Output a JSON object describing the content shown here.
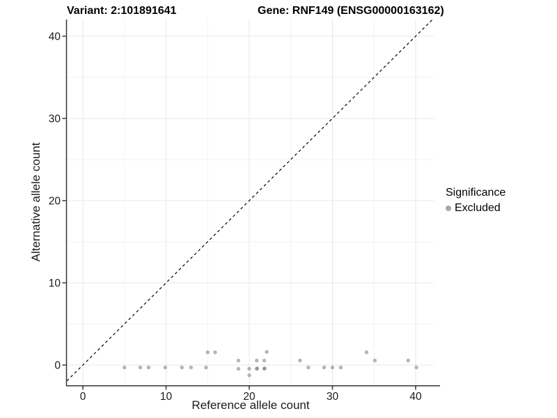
{
  "titles": {
    "variant": "Variant: 2:101891641",
    "gene": "Gene: RNF149 (ENSG00000163162)"
  },
  "legend": {
    "title": "Significance",
    "items": [
      {
        "label": "Excluded",
        "color": "#a8a8a8"
      }
    ]
  },
  "colors": {
    "point": "rgba(120,120,120,0.55)",
    "legend_dot": "#a8a8a8",
    "identity_line": "#000000",
    "axis_line": "#333333",
    "tick_text": "#1a1a1a",
    "grid_major": "#e7e7e7",
    "grid_minor": "#f2f2f2",
    "background": "#ffffff"
  },
  "chart_data": {
    "type": "scatter",
    "title": "Variant: 2:101891641 — Gene: RNF149 (ENSG00000163162)",
    "xlabel": "Reference allele count",
    "ylabel": "Alternative allele count",
    "xlim": [
      -1.93,
      42.18
    ],
    "ylim": [
      -2.46,
      42.03
    ],
    "x_major_ticks": [
      0,
      10,
      20,
      30,
      40
    ],
    "x_minor_ticks": [
      5,
      15,
      25,
      35
    ],
    "y_major_ticks": [
      0,
      10,
      20,
      30,
      40
    ],
    "y_minor_ticks": [
      5,
      15,
      25,
      35
    ],
    "grid": true,
    "legend_position": "right",
    "reference_line": {
      "kind": "identity",
      "style": "dashed",
      "color": "#000000"
    },
    "series": [
      {
        "name": "Excluded",
        "color": "rgba(120,120,120,0.55)",
        "points": [
          [
            5.0,
            -0.3
          ],
          [
            6.9,
            -0.3
          ],
          [
            7.9,
            -0.3
          ],
          [
            9.9,
            -0.3
          ],
          [
            11.9,
            -0.3
          ],
          [
            13.0,
            -0.3
          ],
          [
            14.8,
            -0.3
          ],
          [
            15.0,
            1.55
          ],
          [
            15.9,
            1.55
          ],
          [
            18.7,
            0.55
          ],
          [
            20.9,
            0.55
          ],
          [
            21.8,
            0.55
          ],
          [
            26.1,
            0.55
          ],
          [
            35.1,
            0.55
          ],
          [
            39.1,
            0.55
          ],
          [
            18.7,
            -0.45
          ],
          [
            20.0,
            -0.45
          ],
          [
            20.9,
            -0.45
          ],
          [
            20.95,
            -0.4
          ],
          [
            21.8,
            -0.45
          ],
          [
            21.85,
            -0.4
          ],
          [
            20.0,
            -1.25
          ],
          [
            22.1,
            1.6
          ],
          [
            34.1,
            1.55
          ],
          [
            27.1,
            -0.3
          ],
          [
            29.0,
            -0.3
          ],
          [
            30.0,
            -0.3
          ],
          [
            31.0,
            -0.3
          ],
          [
            40.1,
            -0.3
          ]
        ]
      }
    ]
  }
}
